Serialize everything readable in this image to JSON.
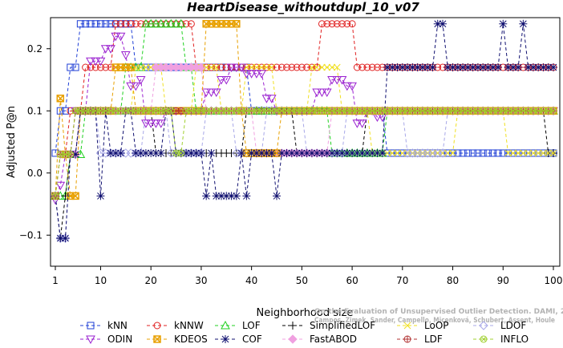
{
  "chart_data": {
    "type": "line",
    "title": "HeartDisease_withoutdupl_10_v07",
    "xlabel": "Neighborhood size",
    "ylabel": "Adjusted P@n",
    "xlim": [
      1,
      100
    ],
    "ylim": [
      -0.15,
      0.25
    ],
    "xticks": [
      1,
      10,
      20,
      30,
      40,
      50,
      60,
      70,
      80,
      90,
      100
    ],
    "yticks": [
      -0.1,
      0.0,
      0.1,
      0.2
    ],
    "ytick_labels": [
      "−0.1",
      "0.0",
      "0.1",
      "0.2"
    ],
    "grid": false,
    "legend_position": "bottom",
    "watermark": [
      "Campos, Zimek, Sander, Campello, Micenková, Schubert, Assent, Houle",
      "On the Evaluation of Unsupervised Outlier Detection. DAMI, 2015."
    ],
    "series": [
      {
        "name": "kNN",
        "color": "#1f3fd6",
        "marker": "square",
        "segments": [
          [
            1,
            0.032
          ],
          [
            3,
            0.1
          ],
          [
            5,
            0.17
          ],
          [
            10,
            0.24
          ],
          [
            16,
            0.24
          ],
          [
            17,
            0.17
          ],
          [
            39,
            0.17
          ],
          [
            40,
            0.1
          ],
          [
            66,
            0.1
          ],
          [
            67,
            0.032
          ],
          [
            100,
            0.032
          ]
        ]
      },
      {
        "name": "kNNW",
        "color": "#e02020",
        "marker": "circle",
        "segments": [
          [
            1,
            -0.037
          ],
          [
            3,
            0.03
          ],
          [
            6,
            0.1
          ],
          [
            12,
            0.17
          ],
          [
            18,
            0.24
          ],
          [
            28,
            0.24
          ],
          [
            29,
            0.17
          ],
          [
            53,
            0.17
          ],
          [
            54,
            0.24
          ],
          [
            60,
            0.24
          ],
          [
            61,
            0.17
          ],
          [
            100,
            0.17
          ]
        ]
      },
      {
        "name": "LOF",
        "color": "#20d020",
        "marker": "triangle-up",
        "segments": [
          [
            1,
            -0.037
          ],
          [
            3,
            -0.037
          ],
          [
            6,
            0.03
          ],
          [
            8,
            0.1
          ],
          [
            14,
            0.1
          ],
          [
            18,
            0.17
          ],
          [
            24,
            0.24
          ],
          [
            26,
            0.24
          ],
          [
            28,
            0.17
          ],
          [
            29,
            0.1
          ],
          [
            55,
            0.1
          ],
          [
            56,
            0.032
          ],
          [
            66,
            0.032
          ],
          [
            67,
            0.1
          ],
          [
            100,
            0.1
          ]
        ]
      },
      {
        "name": "SimplifiedLOF",
        "color": "#000000",
        "marker": "plus",
        "segments": [
          [
            1,
            -0.037
          ],
          [
            2,
            -0.105
          ],
          [
            3,
            -0.037
          ],
          [
            5,
            0.03
          ],
          [
            8,
            0.1
          ],
          [
            20,
            0.1
          ],
          [
            24,
            0.032
          ],
          [
            38,
            0.032
          ],
          [
            39,
            0.1
          ],
          [
            48,
            0.1
          ],
          [
            50,
            0.032
          ],
          [
            62,
            0.032
          ],
          [
            63,
            0.1
          ],
          [
            98,
            0.1
          ],
          [
            99,
            0.032
          ],
          [
            100,
            0.032
          ]
        ]
      },
      {
        "name": "LoOP",
        "color": "#f0e020",
        "marker": "x",
        "segments": [
          [
            1,
            -0.037
          ],
          [
            4,
            0.03
          ],
          [
            7,
            0.1
          ],
          [
            16,
            0.1
          ],
          [
            22,
            0.17
          ],
          [
            28,
            0.1
          ],
          [
            33,
            0.17
          ],
          [
            38,
            0.1
          ],
          [
            44,
            0.17
          ],
          [
            51,
            0.1
          ],
          [
            57,
            0.17
          ],
          [
            63,
            0.1
          ],
          [
            70,
            0.032
          ],
          [
            80,
            0.032
          ],
          [
            90,
            0.1
          ],
          [
            96,
            0.032
          ],
          [
            100,
            0.032
          ]
        ]
      },
      {
        "name": "LDOF",
        "color": "#a8a8e8",
        "marker": "diamond",
        "segments": [
          [
            1,
            -0.037
          ],
          [
            3,
            -0.105
          ],
          [
            5,
            0.03
          ],
          [
            9,
            0.1
          ],
          [
            18,
            0.032
          ],
          [
            23,
            0.1
          ],
          [
            30,
            0.032
          ],
          [
            36,
            0.1
          ],
          [
            42,
            0.032
          ],
          [
            50,
            0.1
          ],
          [
            58,
            0.032
          ],
          [
            70,
            0.1
          ],
          [
            78,
            0.032
          ],
          [
            88,
            0.1
          ],
          [
            100,
            0.1
          ]
        ]
      },
      {
        "name": "ODIN",
        "color": "#9a20d0",
        "marker": "triangle-down",
        "segments": [
          [
            1,
            -0.043
          ],
          [
            2,
            -0.02
          ],
          [
            4,
            0.03
          ],
          [
            7,
            0.1
          ],
          [
            10,
            0.18
          ],
          [
            12,
            0.2
          ],
          [
            14,
            0.22
          ],
          [
            15,
            0.19
          ],
          [
            17,
            0.14
          ],
          [
            18,
            0.15
          ],
          [
            20,
            0.08
          ],
          [
            22,
            0.08
          ],
          [
            24,
            0.1
          ],
          [
            30,
            0.1
          ],
          [
            33,
            0.13
          ],
          [
            35,
            0.15
          ],
          [
            38,
            0.17
          ],
          [
            42,
            0.16
          ],
          [
            44,
            0.12
          ],
          [
            46,
            0.1
          ],
          [
            52,
            0.1
          ],
          [
            55,
            0.13
          ],
          [
            58,
            0.15
          ],
          [
            60,
            0.14
          ],
          [
            62,
            0.08
          ],
          [
            64,
            0.1
          ],
          [
            66,
            0.09
          ],
          [
            68,
            0.1
          ],
          [
            100,
            0.1
          ]
        ]
      },
      {
        "name": "FastABOD",
        "color": "#f0a0e0",
        "marker": "diamond-filled",
        "segments": [
          [
            1,
            -0.037
          ],
          [
            5,
            0.03
          ],
          [
            9,
            0.1
          ],
          [
            20,
            0.1
          ],
          [
            30,
            0.17
          ],
          [
            40,
            0.1
          ],
          [
            45,
            0.032
          ],
          [
            55,
            0.032
          ],
          [
            60,
            0.1
          ],
          [
            100,
            0.1
          ]
        ]
      },
      {
        "name": "KDEOS",
        "color": "#e8a000",
        "marker": "square-cross",
        "segments": [
          [
            1,
            -0.037
          ],
          [
            2,
            0.12
          ],
          [
            3,
            0.03
          ],
          [
            4,
            -0.037
          ],
          [
            5,
            -0.037
          ],
          [
            6,
            0.1
          ],
          [
            12,
            0.1
          ],
          [
            16,
            0.17
          ],
          [
            30,
            0.1
          ],
          [
            35,
            0.24
          ],
          [
            37,
            0.24
          ],
          [
            38,
            0.1
          ],
          [
            45,
            0.032
          ],
          [
            50,
            0.1
          ],
          [
            100,
            0.1
          ]
        ]
      },
      {
        "name": "COF",
        "color": "#101070",
        "marker": "asterisk",
        "segments": [
          [
            1,
            -0.037
          ],
          [
            2,
            -0.105
          ],
          [
            3,
            -0.105
          ],
          [
            5,
            0.03
          ],
          [
            8,
            0.1
          ],
          [
            9,
            0.1
          ],
          [
            10,
            -0.037
          ],
          [
            11,
            0.1
          ],
          [
            12,
            0.032
          ],
          [
            14,
            0.032
          ],
          [
            16,
            0.1
          ],
          [
            17,
            0.032
          ],
          [
            22,
            0.032
          ],
          [
            24,
            0.1
          ],
          [
            25,
            0.032
          ],
          [
            30,
            0.032
          ],
          [
            31,
            -0.037
          ],
          [
            32,
            0.032
          ],
          [
            34,
            -0.037
          ],
          [
            37,
            -0.037
          ],
          [
            38,
            0.032
          ],
          [
            39,
            -0.037
          ],
          [
            40,
            0.032
          ],
          [
            44,
            0.032
          ],
          [
            45,
            -0.037
          ],
          [
            46,
            0.032
          ],
          [
            66,
            0.032
          ],
          [
            70,
            0.17
          ],
          [
            76,
            0.17
          ],
          [
            77,
            0.24
          ],
          [
            78,
            0.24
          ],
          [
            79,
            0.17
          ],
          [
            89,
            0.17
          ],
          [
            90,
            0.24
          ],
          [
            91,
            0.17
          ],
          [
            93,
            0.17
          ],
          [
            94,
            0.24
          ],
          [
            95,
            0.17
          ],
          [
            100,
            0.17
          ]
        ]
      },
      {
        "name": "LDF",
        "color": "#b03030",
        "marker": "circle-plus",
        "segments": [
          [
            1,
            -0.037
          ],
          [
            4,
            0.03
          ],
          [
            8,
            0.1
          ],
          [
            100,
            0.1
          ]
        ]
      },
      {
        "name": "INFLO",
        "color": "#a0d030",
        "marker": "circle-cross",
        "segments": [
          [
            1,
            -0.037
          ],
          [
            4,
            0.03
          ],
          [
            9,
            0.1
          ],
          [
            18,
            0.1
          ],
          [
            20,
            0.1
          ],
          [
            24,
            0.1
          ],
          [
            26,
            0.032
          ],
          [
            30,
            0.1
          ],
          [
            40,
            0.1
          ],
          [
            100,
            0.1
          ]
        ]
      }
    ]
  }
}
